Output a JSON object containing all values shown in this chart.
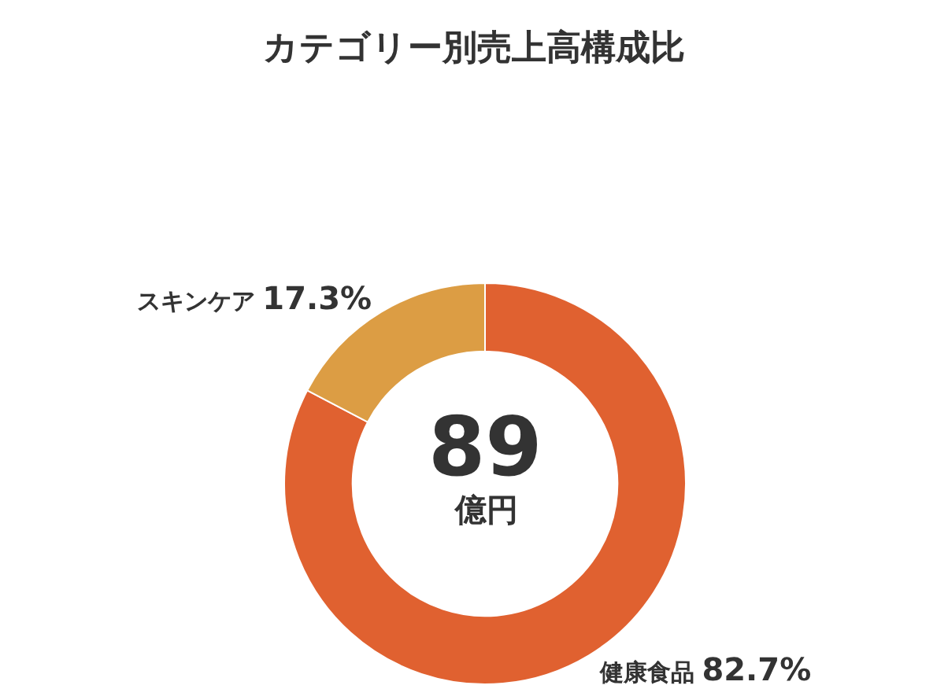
{
  "chart_data": {
    "type": "donut",
    "title": "カテゴリー別売上高構成比",
    "categories": [
      "健康食品",
      "スキンケア"
    ],
    "values": [
      82.7,
      17.3
    ],
    "colors": [
      "#e06130",
      "#dc9d44"
    ],
    "value_labels": [
      "82.7%",
      "17.3%"
    ],
    "annotations": [
      "89",
      "億円"
    ],
    "legend": false
  }
}
